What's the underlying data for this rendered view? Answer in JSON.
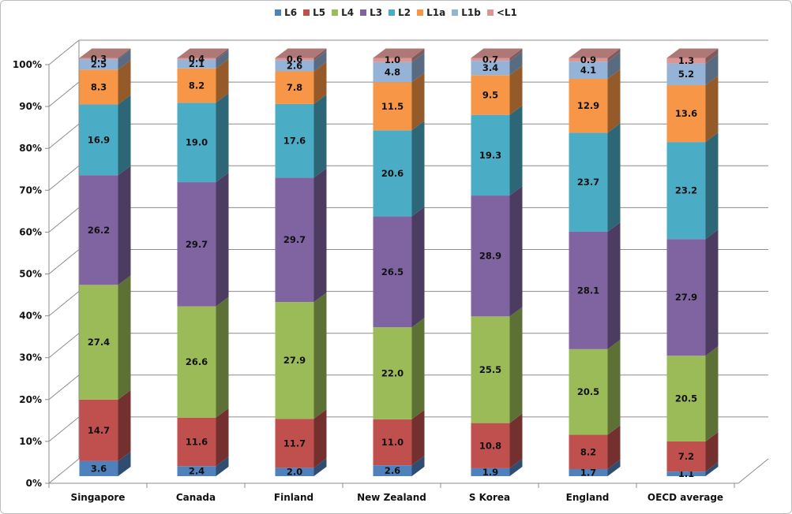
{
  "chart_data": {
    "type": "bar",
    "stacked": "percent",
    "three_d": true,
    "title": "",
    "xlabel": "",
    "ylabel": "",
    "ylim": [
      0,
      100
    ],
    "y_ticks": [
      "0%",
      "10%",
      "20%",
      "30%",
      "40%",
      "50%",
      "60%",
      "70%",
      "80%",
      "90%",
      "100%"
    ],
    "grid": true,
    "legend_position": "top",
    "categories": [
      "Singapore",
      "Canada",
      "Finland",
      "New Zealand",
      "S Korea",
      "England",
      "OECD average"
    ],
    "series": [
      {
        "name": "L6",
        "color": "#4f81bd",
        "values": [
          3.6,
          2.4,
          2.0,
          2.6,
          1.9,
          1.7,
          1.1
        ]
      },
      {
        "name": "L5",
        "color": "#c0504d",
        "values": [
          14.7,
          11.6,
          11.7,
          11.0,
          10.8,
          8.2,
          7.2
        ]
      },
      {
        "name": "L4",
        "color": "#9bbb59",
        "values": [
          27.4,
          26.6,
          27.9,
          22.0,
          25.5,
          20.5,
          20.5
        ]
      },
      {
        "name": "L3",
        "color": "#8064a2",
        "values": [
          26.2,
          29.7,
          29.7,
          26.5,
          28.9,
          28.1,
          27.9
        ]
      },
      {
        "name": "L2",
        "color": "#4bacc6",
        "values": [
          16.9,
          19.0,
          17.6,
          20.6,
          19.3,
          23.7,
          23.2
        ]
      },
      {
        "name": "L1a",
        "color": "#f79646",
        "values": [
          8.3,
          8.2,
          7.8,
          11.5,
          9.5,
          12.9,
          13.6
        ]
      },
      {
        "name": "L1b",
        "color": "#95b3d7",
        "values": [
          2.5,
          2.1,
          2.6,
          4.8,
          3.4,
          4.1,
          5.2
        ]
      },
      {
        "name": "<L1",
        "color": "#d99694",
        "values": [
          0.3,
          0.4,
          0.6,
          1.0,
          0.7,
          0.9,
          1.3
        ]
      }
    ]
  }
}
